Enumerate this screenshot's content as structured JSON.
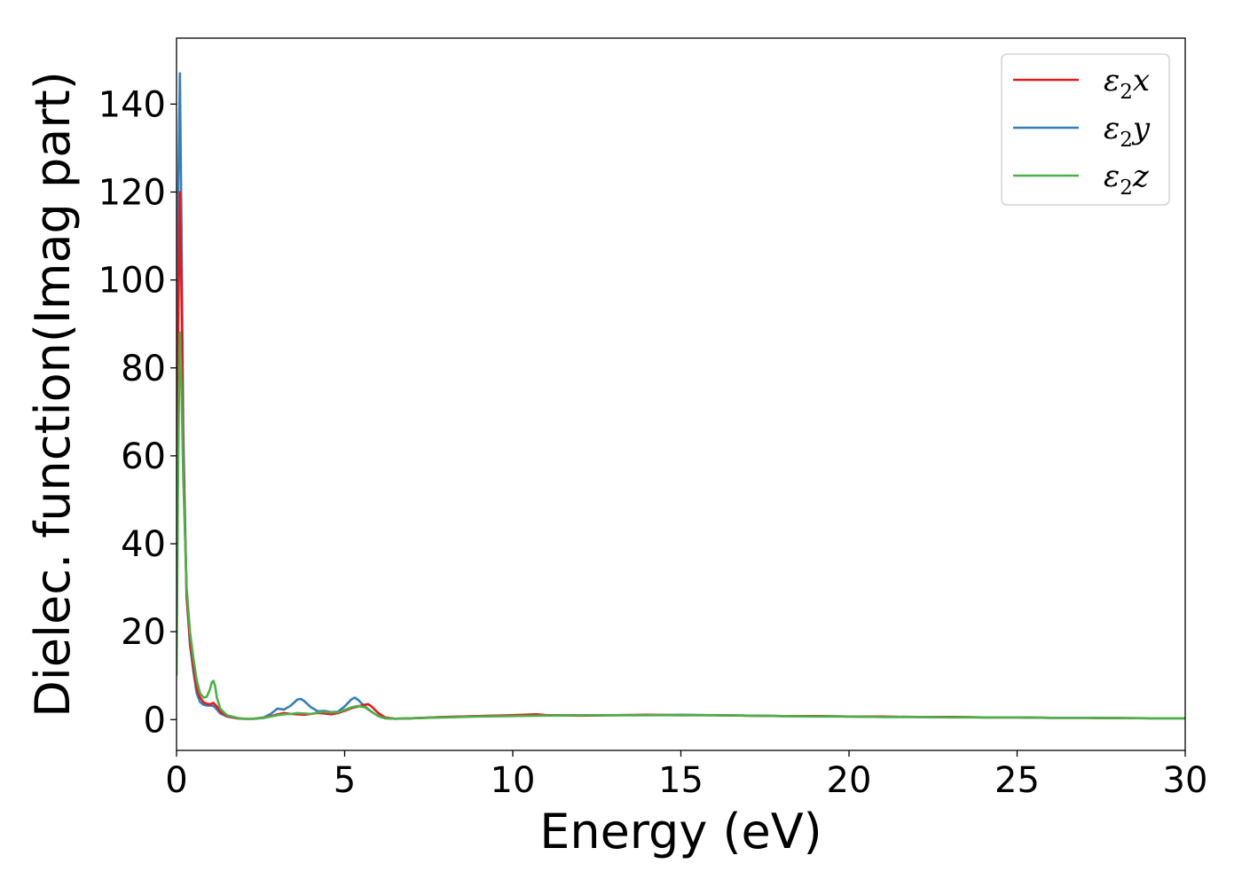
{
  "chart_data": {
    "type": "line",
    "xlabel": "Energy (eV)",
    "ylabel": "Dielec. function(Imag part)",
    "xlim": [
      0,
      30
    ],
    "ylim": [
      -7,
      155
    ],
    "xticks": [
      0,
      5,
      10,
      15,
      20,
      25,
      30
    ],
    "yticks": [
      0,
      20,
      40,
      60,
      80,
      100,
      120,
      140
    ],
    "grid": false,
    "legend_position": "top-right",
    "series": [
      {
        "name": "ε2x",
        "legend_base": "ε",
        "legend_sub": "2",
        "legend_var": "x",
        "color": "#e41a1c",
        "x": [
          0,
          0.05,
          0.1,
          0.15,
          0.2,
          0.3,
          0.4,
          0.5,
          0.6,
          0.7,
          0.8,
          0.9,
          1.0,
          1.1,
          1.2,
          1.3,
          1.5,
          1.8,
          2.0,
          2.3,
          2.6,
          2.8,
          3.0,
          3.2,
          3.4,
          3.6,
          3.8,
          4.0,
          4.2,
          4.4,
          4.6,
          4.8,
          5.0,
          5.2,
          5.4,
          5.6,
          5.7,
          5.8,
          6.0,
          6.2,
          6.5,
          7,
          8,
          9,
          10,
          10.7,
          11,
          12,
          13,
          14,
          15,
          16,
          17,
          18,
          19,
          20,
          21,
          22,
          23,
          24,
          25,
          26,
          27,
          28,
          29,
          30
        ],
        "y": [
          15,
          90,
          120,
          95,
          60,
          28,
          18,
          12,
          7,
          5,
          4,
          3.6,
          3.5,
          3.8,
          3,
          1.8,
          0.8,
          0.3,
          0.2,
          0.2,
          0.4,
          0.8,
          1.2,
          1.5,
          1.3,
          1.2,
          1.1,
          1.3,
          1.5,
          1.4,
          1.2,
          1.5,
          2.0,
          2.6,
          3.0,
          3.4,
          3.5,
          3.0,
          1.5,
          0.5,
          0.2,
          0.3,
          0.6,
          0.8,
          1.0,
          1.2,
          1.0,
          0.9,
          1.0,
          1.1,
          1.0,
          1.0,
          0.9,
          0.8,
          0.8,
          0.7,
          0.7,
          0.6,
          0.6,
          0.5,
          0.5,
          0.4,
          0.4,
          0.35,
          0.3,
          0.3
        ]
      },
      {
        "name": "ε2y",
        "legend_base": "ε",
        "legend_sub": "2",
        "legend_var": "y",
        "color": "#377eb8",
        "x": [
          0,
          0.05,
          0.1,
          0.15,
          0.2,
          0.3,
          0.4,
          0.5,
          0.6,
          0.7,
          0.8,
          0.9,
          1.0,
          1.1,
          1.2,
          1.3,
          1.5,
          1.8,
          2.0,
          2.3,
          2.6,
          2.8,
          3.0,
          3.2,
          3.4,
          3.6,
          3.7,
          3.8,
          4.0,
          4.2,
          4.4,
          4.6,
          4.8,
          5.0,
          5.2,
          5.3,
          5.4,
          5.6,
          5.8,
          6.0,
          6.2,
          6.5,
          7,
          8,
          9,
          10,
          11,
          12,
          13,
          14,
          15,
          16,
          17,
          18,
          19,
          20,
          21,
          22,
          23,
          24,
          25,
          26,
          27,
          28,
          29,
          30
        ],
        "y": [
          20,
          120,
          147,
          110,
          65,
          28,
          17,
          11,
          6,
          4,
          3.4,
          3.2,
          3.2,
          3.1,
          2.3,
          1.4,
          0.7,
          0.3,
          0.2,
          0.2,
          0.5,
          1.3,
          2.5,
          2.3,
          3.2,
          4.6,
          4.7,
          4.2,
          2.8,
          1.9,
          2.0,
          1.7,
          1.8,
          3.0,
          4.6,
          5.0,
          4.5,
          3.0,
          1.8,
          0.8,
          0.3,
          0.2,
          0.3,
          0.6,
          0.8,
          0.9,
          1.0,
          1.0,
          1.0,
          1.0,
          1.1,
          1.0,
          0.9,
          0.8,
          0.8,
          0.7,
          0.6,
          0.6,
          0.6,
          0.5,
          0.5,
          0.4,
          0.4,
          0.35,
          0.3,
          0.3
        ]
      },
      {
        "name": "ε2z",
        "legend_base": "ε",
        "legend_sub": "2",
        "legend_var": "z",
        "color": "#4daf4a",
        "x": [
          0,
          0.05,
          0.1,
          0.15,
          0.2,
          0.3,
          0.4,
          0.5,
          0.6,
          0.7,
          0.8,
          0.9,
          1.0,
          1.05,
          1.1,
          1.15,
          1.2,
          1.3,
          1.5,
          1.8,
          2.0,
          2.3,
          2.6,
          2.8,
          3.0,
          3.2,
          3.4,
          3.6,
          3.8,
          4.0,
          4.2,
          4.4,
          4.6,
          4.8,
          5.0,
          5.2,
          5.4,
          5.6,
          5.8,
          6.0,
          6.2,
          6.5,
          7,
          8,
          9,
          10,
          11,
          12,
          13,
          14,
          15,
          16,
          17,
          18,
          19,
          20,
          21,
          22,
          23,
          24,
          25,
          26,
          27,
          28,
          29,
          30
        ],
        "y": [
          10,
          60,
          88,
          75,
          55,
          30,
          20,
          14,
          9,
          6,
          5,
          5.2,
          7,
          8.5,
          8.8,
          7.5,
          5,
          2.5,
          1.0,
          0.4,
          0.2,
          0.2,
          0.4,
          0.7,
          1.0,
          1.2,
          1.3,
          1.5,
          1.4,
          1.3,
          1.6,
          1.8,
          1.6,
          1.7,
          2.2,
          2.8,
          3.1,
          2.8,
          1.8,
          0.8,
          0.3,
          0.2,
          0.3,
          0.5,
          0.7,
          0.8,
          0.9,
          1.0,
          1.0,
          1.0,
          1.0,
          1.0,
          0.9,
          0.8,
          0.7,
          0.7,
          0.6,
          0.6,
          0.5,
          0.5,
          0.5,
          0.4,
          0.4,
          0.35,
          0.3,
          0.3
        ]
      }
    ]
  }
}
